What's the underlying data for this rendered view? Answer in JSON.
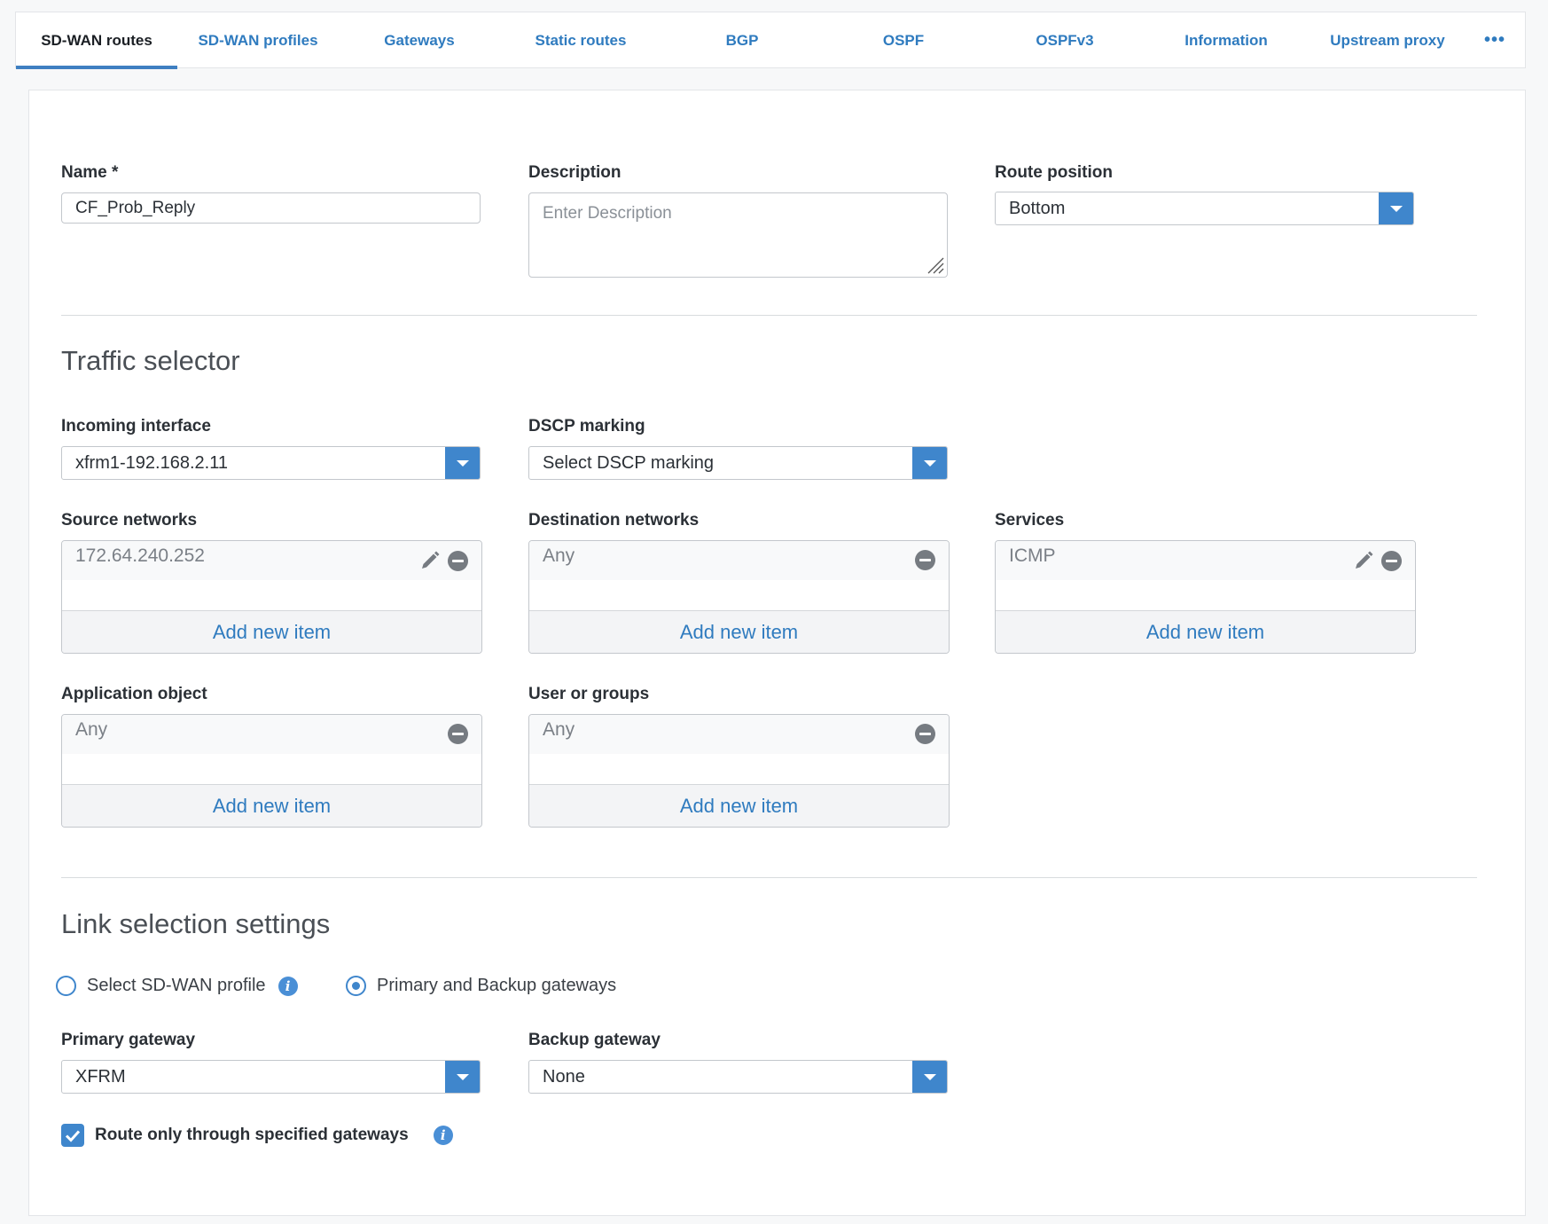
{
  "tabs": [
    {
      "label": "SD-WAN routes",
      "active": true
    },
    {
      "label": "SD-WAN profiles"
    },
    {
      "label": "Gateways"
    },
    {
      "label": "Static routes"
    },
    {
      "label": "BGP"
    },
    {
      "label": "OSPF"
    },
    {
      "label": "OSPFv3"
    },
    {
      "label": "Information"
    },
    {
      "label": "Upstream proxy"
    }
  ],
  "more_label": "•••",
  "form": {
    "name": {
      "label": "Name *",
      "value": "CF_Prob_Reply"
    },
    "description": {
      "label": "Description",
      "placeholder": "Enter Description"
    },
    "route_position": {
      "label": "Route position",
      "value": "Bottom"
    }
  },
  "traffic": {
    "title": "Traffic selector",
    "incoming_interface": {
      "label": "Incoming interface",
      "value": "xfrm1-192.168.2.11"
    },
    "dscp": {
      "label": "DSCP marking",
      "value": "Select DSCP marking"
    },
    "source_networks": {
      "label": "Source networks",
      "item": "172.64.240.252",
      "add": "Add new item"
    },
    "destination_networks": {
      "label": "Destination networks",
      "item": "Any",
      "add": "Add new item"
    },
    "services": {
      "label": "Services",
      "item": "ICMP",
      "add": "Add new item"
    },
    "application_object": {
      "label": "Application object",
      "item": "Any",
      "add": "Add new item"
    },
    "user_groups": {
      "label": "User or groups",
      "item": "Any",
      "add": "Add new item"
    }
  },
  "link": {
    "title": "Link selection settings",
    "radio_profile": {
      "label": "Select SD-WAN profile",
      "selected": false
    },
    "radio_gateways": {
      "label": "Primary and Backup gateways",
      "selected": true
    },
    "primary_gateway": {
      "label": "Primary gateway",
      "value": "XFRM"
    },
    "backup_gateway": {
      "label": "Backup gateway",
      "value": "None"
    },
    "route_only": {
      "label": "Route only through specified gateways",
      "checked": true
    }
  },
  "colors": {
    "accent": "#3f86cc",
    "link": "#2f7bbf"
  }
}
